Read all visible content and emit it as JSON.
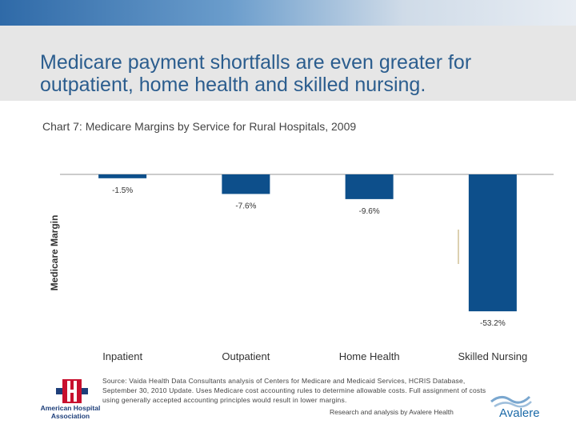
{
  "slide": {
    "title": "Medicare payment shortfalls are even greater for outpatient, home health and skilled nursing.",
    "subtitle": "Chart 7: Medicare Margins by Service for Rural Hospitals, 2009"
  },
  "chart_data": {
    "type": "bar",
    "title": "",
    "xlabel": "",
    "ylabel": "Medicare Margin",
    "categories": [
      "Inpatient",
      "Outpatient",
      "Home Health",
      "Skilled Nursing"
    ],
    "values": [
      -1.5,
      -7.6,
      -9.6,
      -53.2
    ],
    "data_labels": [
      "-1.5%",
      "-7.6%",
      "-9.6%",
      "-53.2%"
    ],
    "ylim": [
      -60,
      0
    ],
    "grid": false,
    "legend": "none",
    "bar_color": "#0d4f8b"
  },
  "footer": {
    "source": "Source: Vaida Health Data Consultants analysis of Centers for Medicare and Medicaid Services, HCRIS Database, September 30, 2010 Update. Uses Medicare cost accounting rules to determine allowable costs. Full assignment of costs using generally accepted accounting principles would result in lower margins.",
    "credit": "Research and analysis by Avalere Health",
    "left_logo": {
      "icon": "aha-h-cross-icon",
      "text": "American Hospital Association"
    },
    "right_logo": {
      "icon": "avalere-waves-icon",
      "text": "Avalere"
    }
  },
  "colors": {
    "title": "#2b5d8e",
    "bar": "#0d4f8b",
    "title_band": "#e6e6e6"
  }
}
